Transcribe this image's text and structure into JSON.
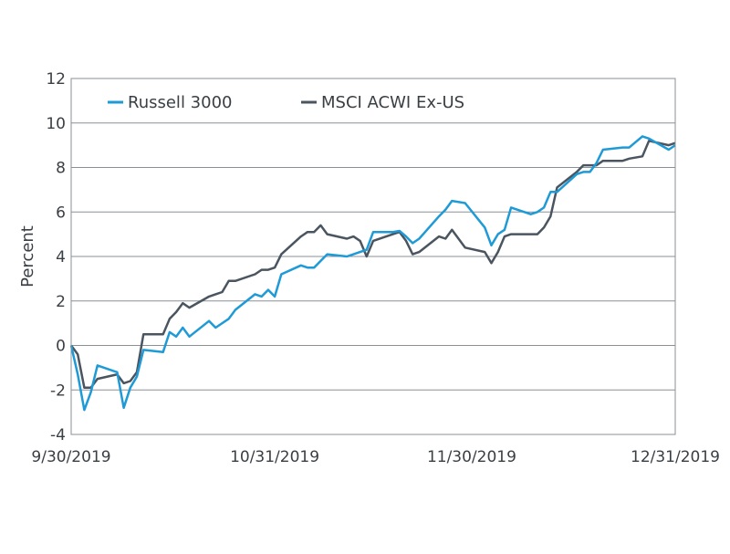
{
  "chart_data": {
    "type": "line",
    "title": "",
    "xlabel": "",
    "ylabel": "Percent",
    "ylim": [
      -4,
      12
    ],
    "yticks": [
      -4,
      -2,
      0,
      2,
      4,
      6,
      8,
      10,
      12
    ],
    "xlim": [
      "9/30/2019",
      "12/31/2019"
    ],
    "xtick_labels": [
      "9/30/2019",
      "10/31/2019",
      "11/30/2019",
      "12/31/2019"
    ],
    "grid": "horizontal",
    "legend_position": "top-left",
    "colors": {
      "Russell 3000": "#1e9ad6",
      "MSCI ACWI Ex-US": "#4a5560"
    },
    "series": [
      {
        "name": "Russell 3000",
        "points": [
          [
            "2019-09-30",
            0.0
          ],
          [
            "2019-10-01",
            -1.3
          ],
          [
            "2019-10-02",
            -2.9
          ],
          [
            "2019-10-03",
            -2.1
          ],
          [
            "2019-10-04",
            -0.9
          ],
          [
            "2019-10-07",
            -1.2
          ],
          [
            "2019-10-08",
            -2.8
          ],
          [
            "2019-10-09",
            -1.9
          ],
          [
            "2019-10-10",
            -1.4
          ],
          [
            "2019-10-11",
            -0.2
          ],
          [
            "2019-10-14",
            -0.3
          ],
          [
            "2019-10-15",
            0.6
          ],
          [
            "2019-10-16",
            0.4
          ],
          [
            "2019-10-17",
            0.8
          ],
          [
            "2019-10-18",
            0.4
          ],
          [
            "2019-10-21",
            1.1
          ],
          [
            "2019-10-22",
            0.8
          ],
          [
            "2019-10-23",
            1.0
          ],
          [
            "2019-10-24",
            1.2
          ],
          [
            "2019-10-25",
            1.6
          ],
          [
            "2019-10-28",
            2.3
          ],
          [
            "2019-10-29",
            2.2
          ],
          [
            "2019-10-30",
            2.5
          ],
          [
            "2019-10-31",
            2.2
          ],
          [
            "2019-11-01",
            3.2
          ],
          [
            "2019-11-04",
            3.6
          ],
          [
            "2019-11-05",
            3.5
          ],
          [
            "2019-11-06",
            3.5
          ],
          [
            "2019-11-07",
            3.8
          ],
          [
            "2019-11-08",
            4.1
          ],
          [
            "2019-11-11",
            4.0
          ],
          [
            "2019-11-12",
            4.1
          ],
          [
            "2019-11-13",
            4.2
          ],
          [
            "2019-11-14",
            4.3
          ],
          [
            "2019-11-15",
            5.1
          ],
          [
            "2019-11-18",
            5.1
          ],
          [
            "2019-11-19",
            5.15
          ],
          [
            "2019-11-20",
            4.9
          ],
          [
            "2019-11-21",
            4.6
          ],
          [
            "2019-11-22",
            4.8
          ],
          [
            "2019-11-25",
            5.8
          ],
          [
            "2019-11-26",
            6.1
          ],
          [
            "2019-11-27",
            6.5
          ],
          [
            "2019-11-29",
            6.4
          ],
          [
            "2019-12-02",
            5.3
          ],
          [
            "2019-12-03",
            4.5
          ],
          [
            "2019-12-04",
            5.0
          ],
          [
            "2019-12-05",
            5.2
          ],
          [
            "2019-12-06",
            6.2
          ],
          [
            "2019-12-09",
            5.9
          ],
          [
            "2019-12-10",
            6.0
          ],
          [
            "2019-12-11",
            6.2
          ],
          [
            "2019-12-12",
            6.9
          ],
          [
            "2019-12-13",
            6.9
          ],
          [
            "2019-12-16",
            7.7
          ],
          [
            "2019-12-17",
            7.8
          ],
          [
            "2019-12-18",
            7.8
          ],
          [
            "2019-12-19",
            8.2
          ],
          [
            "2019-12-20",
            8.8
          ],
          [
            "2019-12-23",
            8.9
          ],
          [
            "2019-12-24",
            8.9
          ],
          [
            "2019-12-26",
            9.4
          ],
          [
            "2019-12-27",
            9.3
          ],
          [
            "2019-12-30",
            8.8
          ],
          [
            "2019-12-31",
            9.0
          ]
        ]
      },
      {
        "name": "MSCI ACWI Ex-US",
        "points": [
          [
            "2019-09-30",
            0.0
          ],
          [
            "2019-10-01",
            -0.4
          ],
          [
            "2019-10-02",
            -1.9
          ],
          [
            "2019-10-03",
            -1.9
          ],
          [
            "2019-10-04",
            -1.5
          ],
          [
            "2019-10-07",
            -1.3
          ],
          [
            "2019-10-08",
            -1.7
          ],
          [
            "2019-10-09",
            -1.6
          ],
          [
            "2019-10-10",
            -1.2
          ],
          [
            "2019-10-11",
            0.5
          ],
          [
            "2019-10-14",
            0.5
          ],
          [
            "2019-10-15",
            1.2
          ],
          [
            "2019-10-16",
            1.5
          ],
          [
            "2019-10-17",
            1.9
          ],
          [
            "2019-10-18",
            1.7
          ],
          [
            "2019-10-21",
            2.2
          ],
          [
            "2019-10-22",
            2.3
          ],
          [
            "2019-10-23",
            2.4
          ],
          [
            "2019-10-24",
            2.9
          ],
          [
            "2019-10-25",
            2.9
          ],
          [
            "2019-10-28",
            3.2
          ],
          [
            "2019-10-29",
            3.4
          ],
          [
            "2019-10-30",
            3.4
          ],
          [
            "2019-10-31",
            3.5
          ],
          [
            "2019-11-01",
            4.1
          ],
          [
            "2019-11-04",
            4.9
          ],
          [
            "2019-11-05",
            5.1
          ],
          [
            "2019-11-06",
            5.1
          ],
          [
            "2019-11-07",
            5.4
          ],
          [
            "2019-11-08",
            5.0
          ],
          [
            "2019-11-11",
            4.8
          ],
          [
            "2019-11-12",
            4.9
          ],
          [
            "2019-11-13",
            4.7
          ],
          [
            "2019-11-14",
            4.0
          ],
          [
            "2019-11-15",
            4.7
          ],
          [
            "2019-11-18",
            5.0
          ],
          [
            "2019-11-19",
            5.1
          ],
          [
            "2019-11-20",
            4.7
          ],
          [
            "2019-11-21",
            4.1
          ],
          [
            "2019-11-22",
            4.2
          ],
          [
            "2019-11-25",
            4.9
          ],
          [
            "2019-11-26",
            4.8
          ],
          [
            "2019-11-27",
            5.2
          ],
          [
            "2019-11-29",
            4.4
          ],
          [
            "2019-12-02",
            4.2
          ],
          [
            "2019-12-03",
            3.7
          ],
          [
            "2019-12-04",
            4.2
          ],
          [
            "2019-12-05",
            4.9
          ],
          [
            "2019-12-06",
            5.0
          ],
          [
            "2019-12-09",
            5.0
          ],
          [
            "2019-12-10",
            5.0
          ],
          [
            "2019-12-11",
            5.3
          ],
          [
            "2019-12-12",
            5.8
          ],
          [
            "2019-12-13",
            7.1
          ],
          [
            "2019-12-16",
            7.8
          ],
          [
            "2019-12-17",
            8.1
          ],
          [
            "2019-12-18",
            8.1
          ],
          [
            "2019-12-19",
            8.1
          ],
          [
            "2019-12-20",
            8.3
          ],
          [
            "2019-12-23",
            8.3
          ],
          [
            "2019-12-24",
            8.4
          ],
          [
            "2019-12-26",
            8.5
          ],
          [
            "2019-12-27",
            9.2
          ],
          [
            "2019-12-30",
            9.0
          ],
          [
            "2019-12-31",
            9.1
          ]
        ]
      }
    ]
  }
}
